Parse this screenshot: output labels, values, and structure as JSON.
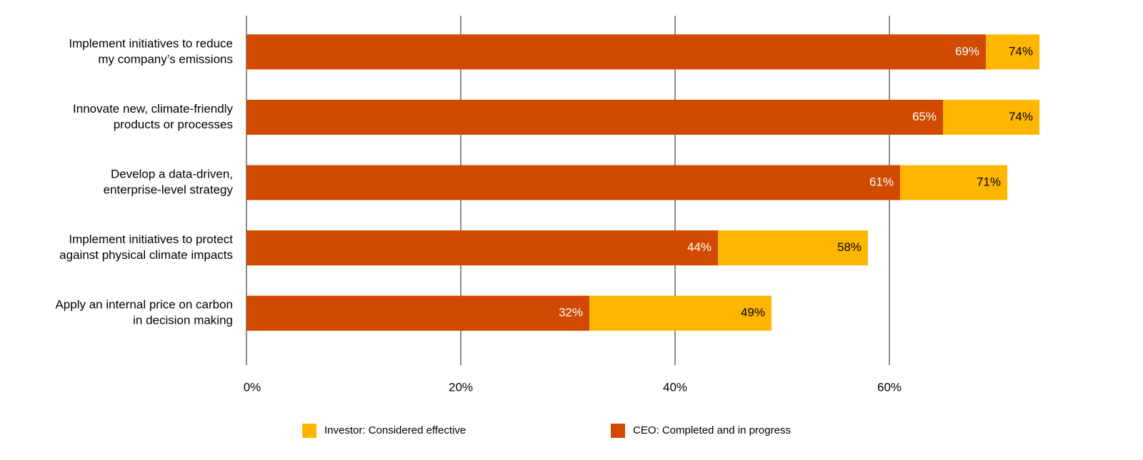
{
  "chart_data": {
    "type": "overlapped-bar",
    "orientation": "horizontal",
    "categories": [
      [
        "Implement initiatives to reduce",
        "my company’s emissions"
      ],
      [
        "Innovate new, climate-friendly",
        "products or processes"
      ],
      [
        "Develop a data-driven,",
        "enterprise-level strategy"
      ],
      [
        "Implement initiatives to protect",
        "against physical climate impacts"
      ],
      [
        "Apply an internal price on carbon",
        "in decision making"
      ]
    ],
    "series": [
      {
        "name": "Investor: Considered effective",
        "color": "#ffb600",
        "label_color": "#000000",
        "values": [
          74,
          74,
          71,
          58,
          49
        ],
        "value_labels": [
          "74%",
          "74%",
          "71%",
          "58%",
          "49%"
        ]
      },
      {
        "name": "CEO: Completed and in progress",
        "color": "#d04a02",
        "label_color": "#ffffff",
        "values": [
          69,
          65,
          61,
          44,
          32
        ],
        "value_labels": [
          "69%",
          "65%",
          "61%",
          "44%",
          "32%"
        ]
      }
    ],
    "xlim": [
      0,
      75
    ],
    "xticks": [
      {
        "value": 0,
        "label": "0%"
      },
      {
        "value": 20,
        "label": "20%"
      },
      {
        "value": 40,
        "label": "40%"
      },
      {
        "value": 60,
        "label": "60%"
      }
    ],
    "grid": true,
    "grid_color": "#8c8c8c",
    "legend": "bottom"
  }
}
